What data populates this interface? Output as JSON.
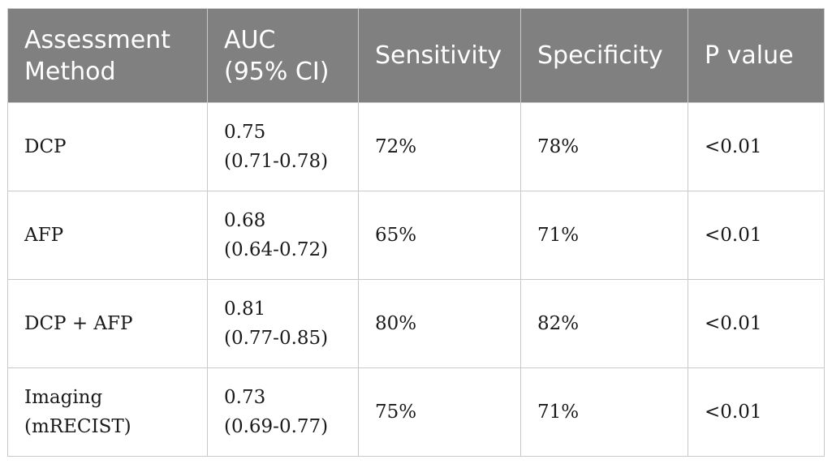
{
  "table": {
    "headers": [
      [
        "Assessment",
        "Method"
      ],
      [
        "AUC",
        "(95% CI)"
      ],
      [
        "Sensitivity"
      ],
      [
        "Specificity"
      ],
      [
        "P value"
      ]
    ],
    "rows": [
      {
        "method": [
          "DCP"
        ],
        "auc": [
          "0.75",
          "(0.71-0.78)"
        ],
        "sensitivity": "72%",
        "specificity": "78%",
        "p_value": "<0.01"
      },
      {
        "method": [
          "AFP"
        ],
        "auc": [
          "0.68",
          "(0.64-0.72)"
        ],
        "sensitivity": "65%",
        "specificity": "71%",
        "p_value": "<0.01"
      },
      {
        "method": [
          "DCP + AFP"
        ],
        "auc": [
          "0.81",
          "(0.77-0.85)"
        ],
        "sensitivity": "80%",
        "specificity": "82%",
        "p_value": "<0.01"
      },
      {
        "method": [
          "Imaging",
          "(mRECIST)"
        ],
        "auc": [
          "0.73",
          "(0.69-0.77)"
        ],
        "sensitivity": "75%",
        "specificity": "71%",
        "p_value": "<0.01"
      }
    ]
  }
}
